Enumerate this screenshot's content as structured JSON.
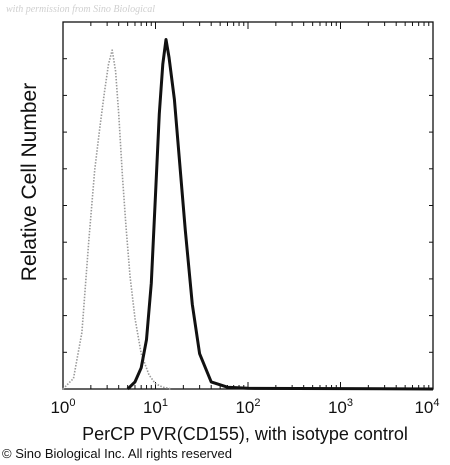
{
  "watermark": "with permission from Sino Biological",
  "copyright": "© Sino Biological Inc. All rights reserved",
  "chart_data": {
    "type": "line",
    "title": "",
    "xlabel": "PerCP PVR(CD155), with isotype control",
    "ylabel": "Relative Cell Number",
    "xscale": "log",
    "xlim": [
      1,
      10000
    ],
    "ylim": [
      0,
      1.0
    ],
    "x_ticks": [
      {
        "base": "10",
        "exp": "0"
      },
      {
        "base": "10",
        "exp": "1"
      },
      {
        "base": "10",
        "exp": "2"
      },
      {
        "base": "10",
        "exp": "3"
      },
      {
        "base": "10",
        "exp": "4"
      }
    ],
    "grid": false,
    "legend": "none",
    "series": [
      {
        "style": "dotted-gray",
        "color": "#9a9a9a",
        "x": [
          1.0,
          1.3,
          1.6,
          1.9,
          2.2,
          2.5,
          2.8,
          3.1,
          3.4,
          3.7,
          4.0,
          4.4,
          4.8,
          5.3,
          6.0,
          7.0,
          8.5,
          10,
          12,
          15
        ],
        "y": [
          0.0,
          0.03,
          0.16,
          0.42,
          0.62,
          0.74,
          0.84,
          0.92,
          0.96,
          0.9,
          0.78,
          0.6,
          0.46,
          0.32,
          0.2,
          0.1,
          0.04,
          0.015,
          0.005,
          0.0
        ]
      },
      {
        "style": "solid-black",
        "color": "#111111",
        "x": [
          5.0,
          6.0,
          7.0,
          8.0,
          9.0,
          10.0,
          11.0,
          12.0,
          13.0,
          14.0,
          16.0,
          18.0,
          21.0,
          25.0,
          30.0,
          40.0,
          60.0,
          100.0,
          1000.0,
          10000.0
        ],
        "y": [
          0.0,
          0.02,
          0.06,
          0.14,
          0.3,
          0.55,
          0.78,
          0.92,
          0.99,
          0.94,
          0.82,
          0.66,
          0.45,
          0.24,
          0.1,
          0.02,
          0.005,
          0.002,
          0.001,
          0.0
        ]
      }
    ]
  }
}
